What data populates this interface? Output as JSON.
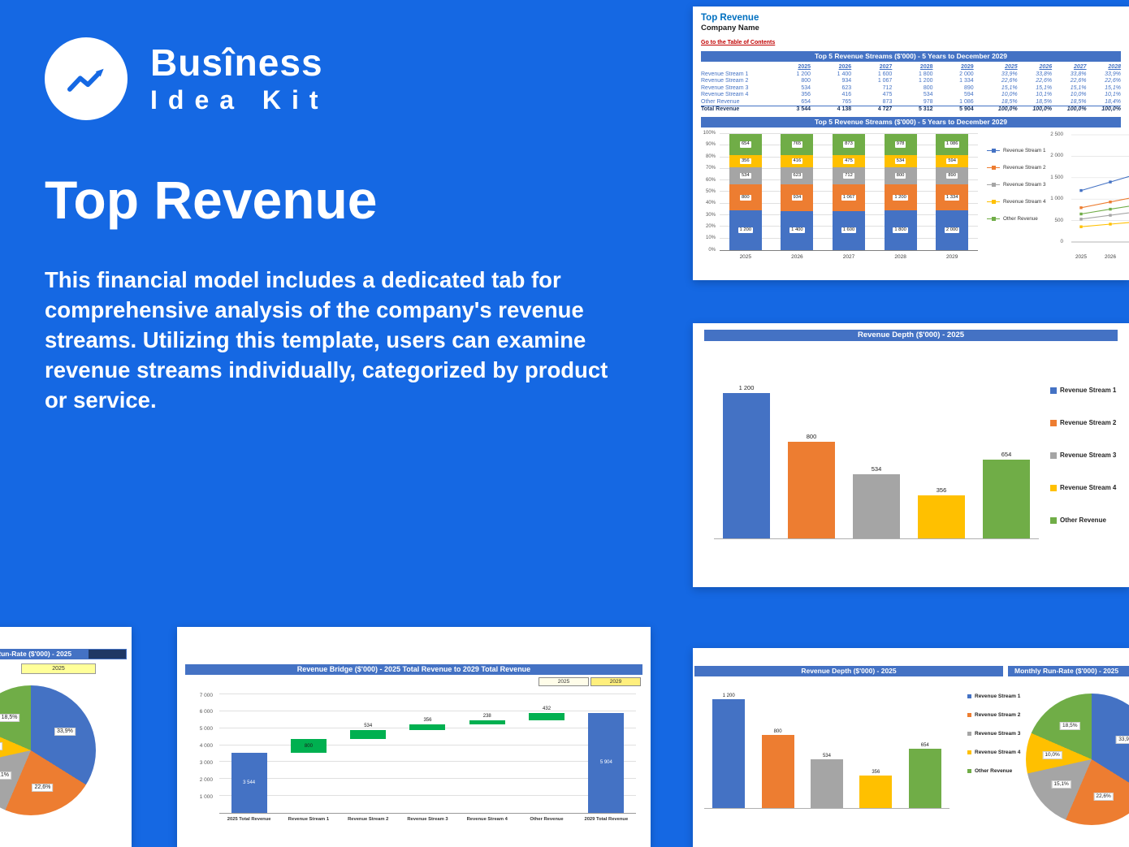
{
  "page": {
    "background": "#1568e3"
  },
  "brand": {
    "line1": "Busîness",
    "line2": "Idea Kit"
  },
  "hero": {
    "title": "Top Revenue",
    "description": "This financial model includes a dedicated tab for comprehensive analysis of the company's revenue streams. Utilizing this template, users can examine revenue streams individually, categorized by product or service."
  },
  "palette": {
    "stream1": "#4472c4",
    "stream2": "#ed7d31",
    "stream3": "#a5a5a5",
    "stream4": "#ffc000",
    "other": "#70ad47",
    "bridge_green": "#00b050",
    "header_bar": "#4472c4",
    "header_dark": "#1f3864"
  },
  "workbook": {
    "sheet_title": "Top Revenue",
    "company": "Company Name",
    "toc_link": "Go to the Table of Contents",
    "table_title": "Top 5 Revenue Streams ($'000) - 5 Years to December 2029",
    "years": [
      "2025",
      "2026",
      "2027",
      "2028",
      "2029"
    ],
    "pct_years": [
      "2025",
      "2026",
      "2027",
      "2028"
    ],
    "rows": [
      {
        "label": "Revenue Stream 1",
        "values": [
          "1 200",
          "1 400",
          "1 600",
          "1 800",
          "2 000"
        ],
        "pcts": [
          "33,9%",
          "33,8%",
          "33,8%",
          "33,9%"
        ]
      },
      {
        "label": "Revenue Stream 2",
        "values": [
          "800",
          "934",
          "1 067",
          "1 200",
          "1 334"
        ],
        "pcts": [
          "22,6%",
          "22,6%",
          "22,6%",
          "22,6%"
        ]
      },
      {
        "label": "Revenue Stream 3",
        "values": [
          "534",
          "623",
          "712",
          "800",
          "890"
        ],
        "pcts": [
          "15,1%",
          "15,1%",
          "15,1%",
          "15,1%"
        ]
      },
      {
        "label": "Revenue Stream 4",
        "values": [
          "356",
          "416",
          "475",
          "534",
          "594"
        ],
        "pcts": [
          "10,0%",
          "10,1%",
          "10,0%",
          "10,1%"
        ]
      },
      {
        "label": "Other Revenue",
        "values": [
          "654",
          "765",
          "873",
          "978",
          "1 086"
        ],
        "pcts": [
          "18,5%",
          "18,5%",
          "18,5%",
          "18,4%"
        ]
      }
    ],
    "total": {
      "label": "Total Revenue",
      "values": [
        "3 544",
        "4 138",
        "4 727",
        "5 312",
        "5 904"
      ],
      "pcts": [
        "100,0%",
        "100,0%",
        "100,0%",
        "100,0%"
      ]
    }
  },
  "chart_data": [
    {
      "type": "bar",
      "variant": "stacked-100pct",
      "title": "Top 5 Revenue Streams ($'000) - 5 Years to December 2029",
      "categories": [
        "2025",
        "2026",
        "2027",
        "2028",
        "2029"
      ],
      "y_ticks": [
        "100%",
        "90%",
        "80%",
        "70%",
        "60%",
        "50%",
        "40%",
        "30%",
        "20%",
        "10%",
        "0%"
      ],
      "legend_position": "right",
      "grid": true,
      "series": [
        {
          "name": "Revenue Stream 1",
          "color": "stream1",
          "values": [
            1200,
            1400,
            1600,
            1800,
            2000
          ],
          "labels": [
            "1 200",
            "1 400",
            "1 600",
            "1 800",
            "2 000"
          ]
        },
        {
          "name": "Revenue Stream 2",
          "color": "stream2",
          "values": [
            800,
            934,
            1067,
            1200,
            1334
          ],
          "labels": [
            "800",
            "934",
            "1 067",
            "1 200",
            "1 334"
          ]
        },
        {
          "name": "Revenue Stream 3",
          "color": "stream3",
          "values": [
            534,
            623,
            712,
            800,
            890
          ],
          "labels": [
            "534",
            "623",
            "712",
            "800",
            "890"
          ]
        },
        {
          "name": "Revenue Stream 4",
          "color": "stream4",
          "values": [
            356,
            416,
            475,
            534,
            594
          ],
          "labels": [
            "356",
            "416",
            "475",
            "534",
            "594"
          ]
        },
        {
          "name": "Other Revenue",
          "color": "other",
          "values": [
            654,
            765,
            873,
            978,
            1086
          ],
          "labels": [
            "654",
            "765",
            "873",
            "978",
            "1 086"
          ]
        }
      ]
    },
    {
      "type": "line",
      "title": "",
      "categories": [
        "2025",
        "2026",
        "2027",
        "2028",
        "2029"
      ],
      "ylim": [
        0,
        2500
      ],
      "y_ticks": [
        "2 500",
        "2 000",
        "1 500",
        "1 000",
        "500",
        "0"
      ],
      "grid": true,
      "series": [
        {
          "name": "Revenue Stream 1",
          "color": "stream1",
          "values": [
            1200,
            1400,
            1600,
            1800,
            2000
          ]
        },
        {
          "name": "Revenue Stream 2",
          "color": "stream2",
          "values": [
            800,
            934,
            1067,
            1200,
            1334
          ]
        },
        {
          "name": "Revenue Stream 3",
          "color": "stream3",
          "values": [
            534,
            623,
            712,
            800,
            890
          ]
        },
        {
          "name": "Revenue Stream 4",
          "color": "stream4",
          "values": [
            356,
            416,
            475,
            534,
            594
          ]
        },
        {
          "name": "Other Revenue",
          "color": "other",
          "values": [
            654,
            765,
            873,
            978,
            1086
          ]
        }
      ]
    },
    {
      "type": "bar",
      "title": "Revenue Depth ($'000) - 2025",
      "categories": [
        "Revenue Stream 1",
        "Revenue Stream 2",
        "Revenue Stream 3",
        "Revenue Stream 4",
        "Other Revenue"
      ],
      "values": [
        1200,
        800,
        534,
        356,
        654
      ],
      "labels": [
        "1 200",
        "800",
        "534",
        "356",
        "654"
      ],
      "colors": [
        "stream1",
        "stream2",
        "stream3",
        "stream4",
        "other"
      ],
      "ylim": [
        0,
        1250
      ],
      "legend_position": "right",
      "grid": false
    },
    {
      "type": "pie",
      "title": "Monthly Run-Rate ($'000) - 2025",
      "year_filter": "2025",
      "labels": [
        "Revenue Stream 1",
        "Revenue Stream 2",
        "Revenue Stream 3",
        "Revenue Stream 4",
        "Other Revenue"
      ],
      "values": [
        33.9,
        22.6,
        15.1,
        10.0,
        18.5
      ],
      "value_labels": [
        "33,9%",
        "22,6%",
        "15,1%",
        "10,0%",
        "18,5%"
      ],
      "colors": [
        "stream1",
        "stream2",
        "stream3",
        "stream4",
        "other"
      ]
    },
    {
      "type": "waterfall",
      "title": "Revenue Bridge ($'000) - 2025 Total Revenue to 2029 Total Revenue",
      "filters": [
        "2025",
        "2029"
      ],
      "categories": [
        "2025 Total Revenue",
        "Revenue Stream 1",
        "Revenue Stream 2",
        "Revenue Stream 3",
        "Revenue Stream 4",
        "Other Revenue",
        "2029 Total Revenue"
      ],
      "values": [
        3544,
        800,
        534,
        356,
        238,
        432,
        5904
      ],
      "labels": [
        "3 544",
        "800",
        "534",
        "356",
        "238",
        "432",
        "5 904"
      ],
      "kinds": [
        "total",
        "delta",
        "delta",
        "delta",
        "delta",
        "delta",
        "total"
      ],
      "ylim": [
        0,
        7000
      ],
      "y_ticks": [
        "7 000",
        "6 000",
        "5 000",
        "4 000",
        "3 000",
        "2 000",
        "1 000"
      ],
      "grid": true
    }
  ]
}
